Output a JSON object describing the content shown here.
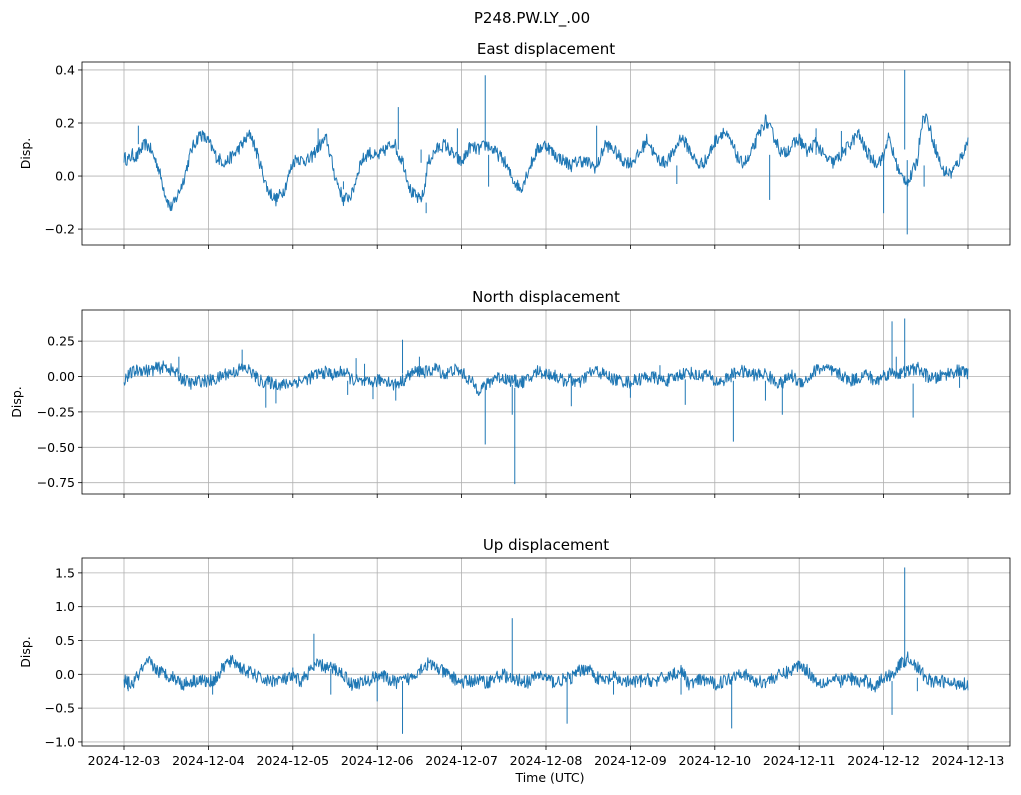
{
  "figure": {
    "suptitle": "P248.PW.LY_.00",
    "line_color": "#1f77b4"
  },
  "chart_data": [
    {
      "type": "line",
      "title": "East displacement",
      "xlabel": "",
      "ylabel": "Disp.",
      "x_range": [
        "2024-12-03T00:00",
        "2024-12-13T00:00"
      ],
      "ylim": [
        -0.26,
        0.43
      ],
      "yticks": [
        -0.2,
        0.0,
        0.2,
        0.4
      ],
      "ytick_labels": [
        "−0.2",
        "0.0",
        "0.2",
        "0.4"
      ],
      "grid": true,
      "series": [
        {
          "x_days": [
            0,
            0.05,
            0.1,
            0.15,
            0.2,
            0.25,
            0.3,
            0.4,
            0.5,
            0.55,
            0.6,
            0.7,
            0.8,
            0.9,
            1.0,
            1.1,
            1.2,
            1.3,
            1.4,
            1.5,
            1.6,
            1.7,
            1.8,
            1.9,
            2.0,
            2.05,
            2.1,
            2.2,
            2.3,
            2.4,
            2.5,
            2.6,
            2.7,
            2.8,
            2.9,
            3.0,
            3.1,
            3.2,
            3.25,
            3.3,
            3.4,
            3.5,
            3.55,
            3.6,
            3.7,
            3.8,
            3.9,
            4.0,
            4.1,
            4.2,
            4.3,
            4.4,
            4.5,
            4.6,
            4.7,
            4.8,
            4.9,
            5.0,
            5.1,
            5.2,
            5.3,
            5.4,
            5.5,
            5.6,
            5.7,
            5.8,
            5.9,
            6.0,
            6.1,
            6.2,
            6.3,
            6.4,
            6.5,
            6.6,
            6.7,
            6.8,
            6.9,
            7.0,
            7.1,
            7.2,
            7.3,
            7.4,
            7.5,
            7.6,
            7.7,
            7.8,
            7.9,
            8.0,
            8.1,
            8.2,
            8.3,
            8.4,
            8.5,
            8.6,
            8.7,
            8.8,
            8.9,
            9.0,
            9.05,
            9.1,
            9.15,
            9.2,
            9.3,
            9.4,
            9.45,
            9.5,
            9.6,
            9.7,
            9.8,
            9.9,
            10.0
          ],
          "values": [
            0.07,
            0.06,
            0.08,
            0.07,
            0.1,
            0.12,
            0.11,
            0.04,
            -0.08,
            -0.12,
            -0.1,
            -0.02,
            0.1,
            0.16,
            0.13,
            0.07,
            0.05,
            0.08,
            0.12,
            0.16,
            0.06,
            -0.05,
            -0.09,
            -0.05,
            0.05,
            0.07,
            0.06,
            0.06,
            0.11,
            0.14,
            0.0,
            -0.09,
            -0.07,
            0.05,
            0.09,
            0.07,
            0.1,
            0.13,
            0.08,
            0.06,
            -0.06,
            -0.09,
            -0.07,
            0.05,
            0.1,
            0.12,
            0.08,
            0.05,
            0.11,
            0.1,
            0.12,
            0.09,
            0.06,
            -0.01,
            -0.05,
            0.03,
            0.1,
            0.12,
            0.08,
            0.06,
            0.04,
            0.06,
            0.05,
            0.03,
            0.12,
            0.1,
            0.06,
            0.05,
            0.08,
            0.14,
            0.07,
            0.05,
            0.08,
            0.15,
            0.1,
            0.04,
            0.06,
            0.13,
            0.17,
            0.12,
            0.05,
            0.06,
            0.14,
            0.21,
            0.15,
            0.08,
            0.11,
            0.14,
            0.09,
            0.13,
            0.07,
            0.05,
            0.08,
            0.12,
            0.16,
            0.09,
            0.05,
            0.07,
            0.15,
            0.1,
            0.05,
            0.0,
            -0.02,
            0.06,
            0.2,
            0.23,
            0.12,
            0.02,
            0.01,
            0.06,
            0.13
          ]
        }
      ],
      "spikes": [
        {
          "x_days": 0.17,
          "from": 0.12,
          "to": 0.19
        },
        {
          "x_days": 2.3,
          "from": 0.09,
          "to": 0.18
        },
        {
          "x_days": 3.25,
          "from": 0.1,
          "to": 0.26
        },
        {
          "x_days": 2.6,
          "from": -0.05,
          "to": -0.02
        },
        {
          "x_days": 3.58,
          "from": -0.1,
          "to": -0.14
        },
        {
          "x_days": 3.95,
          "from": 0.05,
          "to": 0.18
        },
        {
          "x_days": 3.52,
          "from": 0.05,
          "to": 0.1
        },
        {
          "x_days": 4.28,
          "from": 0.12,
          "to": 0.38
        },
        {
          "x_days": 4.32,
          "from": 0.08,
          "to": -0.04
        },
        {
          "x_days": 5.6,
          "from": 0.04,
          "to": 0.19
        },
        {
          "x_days": 6.55,
          "from": 0.04,
          "to": -0.03
        },
        {
          "x_days": 7.65,
          "from": 0.08,
          "to": -0.09
        },
        {
          "x_days": 8.2,
          "from": 0.08,
          "to": 0.18
        },
        {
          "x_days": 8.5,
          "from": 0.07,
          "to": 0.17
        },
        {
          "x_days": 9.0,
          "from": 0.08,
          "to": -0.14
        },
        {
          "x_days": 9.25,
          "from": 0.1,
          "to": 0.4
        },
        {
          "x_days": 9.28,
          "from": 0.06,
          "to": -0.22
        },
        {
          "x_days": 9.48,
          "from": 0.04,
          "to": -0.04
        }
      ]
    },
    {
      "type": "line",
      "title": "North displacement",
      "xlabel": "",
      "ylabel": "Disp.",
      "x_range": [
        "2024-12-03T00:00",
        "2024-12-13T00:00"
      ],
      "ylim": [
        -0.83,
        0.47
      ],
      "yticks": [
        -0.75,
        -0.5,
        -0.25,
        0.0,
        0.25
      ],
      "ytick_labels": [
        "−0.75",
        "−0.50",
        "−0.25",
        "0.00",
        "0.25"
      ],
      "grid": true,
      "series": [
        {
          "x_days": [
            0,
            0.1,
            0.2,
            0.3,
            0.4,
            0.5,
            0.6,
            0.7,
            0.8,
            0.9,
            1.0,
            1.1,
            1.2,
            1.3,
            1.4,
            1.5,
            1.6,
            1.7,
            1.8,
            1.9,
            2.0,
            2.1,
            2.2,
            2.3,
            2.4,
            2.5,
            2.6,
            2.7,
            2.8,
            2.9,
            3.0,
            3.1,
            3.2,
            3.3,
            3.4,
            3.5,
            3.6,
            3.7,
            3.8,
            3.9,
            4.0,
            4.1,
            4.2,
            4.3,
            4.4,
            4.5,
            4.6,
            4.7,
            4.8,
            4.9,
            5.0,
            5.1,
            5.2,
            5.3,
            5.4,
            5.5,
            5.6,
            5.7,
            5.8,
            5.9,
            6.0,
            6.1,
            6.2,
            6.3,
            6.4,
            6.5,
            6.6,
            6.7,
            6.8,
            6.9,
            7.0,
            7.1,
            7.2,
            7.3,
            7.4,
            7.5,
            7.6,
            7.7,
            7.8,
            7.9,
            8.0,
            8.1,
            8.2,
            8.3,
            8.4,
            8.5,
            8.6,
            8.7,
            8.8,
            8.9,
            9.0,
            9.1,
            9.2,
            9.3,
            9.4,
            9.5,
            9.6,
            9.7,
            9.8,
            9.9,
            10.0
          ],
          "values": [
            -0.02,
            0.03,
            0.05,
            0.04,
            0.06,
            0.07,
            0.03,
            -0.02,
            -0.05,
            -0.03,
            -0.03,
            -0.02,
            0.02,
            0.03,
            0.06,
            0.04,
            -0.03,
            -0.04,
            -0.05,
            -0.06,
            -0.04,
            -0.03,
            -0.01,
            0.02,
            0.03,
            0.01,
            0.04,
            -0.02,
            -0.04,
            -0.05,
            -0.03,
            -0.02,
            -0.06,
            -0.03,
            0.02,
            0.04,
            0.03,
            0.06,
            0.01,
            0.05,
            0.03,
            -0.03,
            -0.09,
            -0.06,
            0.0,
            -0.01,
            -0.03,
            -0.04,
            -0.02,
            0.04,
            0.02,
            0.01,
            -0.03,
            -0.02,
            -0.05,
            0.02,
            0.04,
            0.01,
            -0.02,
            -0.03,
            -0.04,
            -0.02,
            0.0,
            -0.01,
            -0.03,
            -0.02,
            0.02,
            0.03,
            0.0,
            0.02,
            -0.04,
            -0.03,
            0.01,
            0.04,
            0.02,
            0.01,
            0.02,
            -0.03,
            -0.05,
            0.01,
            -0.04,
            -0.02,
            0.05,
            0.06,
            0.03,
            0.01,
            -0.03,
            -0.01,
            0.02,
            -0.04,
            0.01,
            0.03,
            0.02,
            0.04,
            0.06,
            0.01,
            -0.02,
            0.01,
            0.03,
            0.04,
            0.02
          ]
        }
      ],
      "spikes": [
        {
          "x_days": 0.65,
          "from": 0.02,
          "to": 0.14
        },
        {
          "x_days": 1.4,
          "from": 0.05,
          "to": 0.19
        },
        {
          "x_days": 1.68,
          "from": -0.04,
          "to": -0.22
        },
        {
          "x_days": 1.8,
          "from": -0.05,
          "to": -0.19
        },
        {
          "x_days": 2.65,
          "from": -0.03,
          "to": -0.13
        },
        {
          "x_days": 2.75,
          "from": -0.02,
          "to": 0.13
        },
        {
          "x_days": 2.85,
          "from": -0.03,
          "to": 0.09
        },
        {
          "x_days": 2.95,
          "from": -0.04,
          "to": -0.16
        },
        {
          "x_days": 3.22,
          "from": -0.04,
          "to": -0.17
        },
        {
          "x_days": 3.3,
          "from": 0.02,
          "to": 0.26
        },
        {
          "x_days": 3.5,
          "from": 0.03,
          "to": 0.14
        },
        {
          "x_days": 4.28,
          "from": -0.05,
          "to": -0.48
        },
        {
          "x_days": 4.6,
          "from": -0.06,
          "to": -0.27
        },
        {
          "x_days": 4.63,
          "from": -0.08,
          "to": -0.76
        },
        {
          "x_days": 5.3,
          "from": -0.03,
          "to": -0.21
        },
        {
          "x_days": 6.0,
          "from": -0.03,
          "to": -0.15
        },
        {
          "x_days": 6.35,
          "from": -0.02,
          "to": 0.08
        },
        {
          "x_days": 6.65,
          "from": -0.02,
          "to": -0.2
        },
        {
          "x_days": 7.22,
          "from": -0.03,
          "to": -0.46
        },
        {
          "x_days": 7.6,
          "from": -0.03,
          "to": -0.17
        },
        {
          "x_days": 7.8,
          "from": -0.02,
          "to": -0.27
        },
        {
          "x_days": 9.1,
          "from": 0.02,
          "to": 0.39
        },
        {
          "x_days": 9.15,
          "from": 0.0,
          "to": 0.14
        },
        {
          "x_days": 9.25,
          "from": 0.04,
          "to": 0.41
        },
        {
          "x_days": 9.35,
          "from": -0.05,
          "to": -0.29
        },
        {
          "x_days": 9.9,
          "from": 0.0,
          "to": -0.08
        }
      ]
    },
    {
      "type": "line",
      "title": "Up displacement",
      "xlabel": "Time (UTC)",
      "ylabel": "Disp.",
      "x_range": [
        "2024-12-03T00:00",
        "2024-12-13T00:00"
      ],
      "xticks": [
        "2024-12-03",
        "2024-12-04",
        "2024-12-05",
        "2024-12-06",
        "2024-12-07",
        "2024-12-08",
        "2024-12-09",
        "2024-12-10",
        "2024-12-11",
        "2024-12-12",
        "2024-12-13"
      ],
      "ylim": [
        -1.06,
        1.72
      ],
      "yticks": [
        -1.0,
        -0.5,
        0.0,
        0.5,
        1.0,
        1.5
      ],
      "ytick_labels": [
        "−1.0",
        "−0.5",
        "0.0",
        "0.5",
        "1.0",
        "1.5"
      ],
      "grid": true,
      "series": [
        {
          "x_days": [
            0,
            0.1,
            0.2,
            0.3,
            0.4,
            0.5,
            0.6,
            0.7,
            0.8,
            0.9,
            1.0,
            1.1,
            1.2,
            1.3,
            1.4,
            1.5,
            1.6,
            1.7,
            1.8,
            1.9,
            2.0,
            2.1,
            2.2,
            2.3,
            2.4,
            2.5,
            2.6,
            2.7,
            2.8,
            2.9,
            3.0,
            3.1,
            3.2,
            3.3,
            3.4,
            3.5,
            3.6,
            3.7,
            3.8,
            3.9,
            4.0,
            4.1,
            4.2,
            4.3,
            4.4,
            4.5,
            4.6,
            4.7,
            4.8,
            4.9,
            5.0,
            5.1,
            5.2,
            5.3,
            5.4,
            5.5,
            5.6,
            5.7,
            5.8,
            5.9,
            6.0,
            6.1,
            6.2,
            6.3,
            6.4,
            6.5,
            6.6,
            6.7,
            6.8,
            6.9,
            7.0,
            7.1,
            7.2,
            7.3,
            7.4,
            7.5,
            7.6,
            7.7,
            7.8,
            7.9,
            8.0,
            8.1,
            8.2,
            8.3,
            8.4,
            8.5,
            8.6,
            8.7,
            8.8,
            8.9,
            9.0,
            9.1,
            9.2,
            9.3,
            9.4,
            9.5,
            9.6,
            9.7,
            9.8,
            9.9,
            10.0
          ],
          "values": [
            -0.1,
            -0.15,
            0.05,
            0.18,
            0.05,
            0.0,
            -0.05,
            -0.15,
            -0.1,
            -0.08,
            -0.12,
            -0.05,
            0.15,
            0.2,
            0.08,
            0.02,
            -0.05,
            -0.1,
            -0.08,
            -0.08,
            -0.05,
            -0.1,
            0.05,
            0.15,
            0.1,
            0.08,
            0.0,
            -0.15,
            -0.12,
            -0.1,
            0.0,
            -0.05,
            -0.12,
            -0.1,
            -0.05,
            0.08,
            0.15,
            0.1,
            0.02,
            -0.05,
            -0.12,
            -0.1,
            -0.08,
            -0.12,
            -0.05,
            0.0,
            -0.1,
            -0.08,
            -0.12,
            0.0,
            -0.05,
            -0.12,
            -0.08,
            -0.05,
            0.05,
            0.1,
            -0.05,
            -0.1,
            -0.05,
            -0.1,
            -0.12,
            -0.1,
            -0.08,
            -0.1,
            -0.05,
            0.0,
            0.05,
            -0.15,
            -0.1,
            -0.08,
            -0.15,
            -0.1,
            -0.05,
            0.05,
            -0.05,
            -0.12,
            -0.1,
            -0.05,
            0.0,
            0.05,
            0.15,
            0.05,
            -0.1,
            -0.12,
            -0.08,
            -0.1,
            -0.05,
            -0.12,
            -0.1,
            -0.18,
            -0.05,
            0.0,
            0.15,
            0.25,
            0.1,
            -0.05,
            -0.12,
            -0.1,
            -0.15,
            -0.12,
            -0.15
          ]
        }
      ],
      "spikes": [
        {
          "x_days": 0.05,
          "from": -0.05,
          "to": -0.25
        },
        {
          "x_days": 1.05,
          "from": -0.1,
          "to": -0.3
        },
        {
          "x_days": 2.0,
          "from": -0.05,
          "to": 0.1
        },
        {
          "x_days": 2.25,
          "from": 0.05,
          "to": 0.6
        },
        {
          "x_days": 2.45,
          "from": 0.08,
          "to": -0.3
        },
        {
          "x_days": 3.0,
          "from": 0.0,
          "to": -0.4
        },
        {
          "x_days": 3.3,
          "from": -0.1,
          "to": -0.88
        },
        {
          "x_days": 3.6,
          "from": 0.1,
          "to": 0.25
        },
        {
          "x_days": 4.6,
          "from": -0.08,
          "to": 0.83
        },
        {
          "x_days": 5.25,
          "from": -0.05,
          "to": -0.73
        },
        {
          "x_days": 5.8,
          "from": -0.1,
          "to": -0.3
        },
        {
          "x_days": 6.6,
          "from": -0.05,
          "to": -0.3
        },
        {
          "x_days": 7.2,
          "from": -0.1,
          "to": -0.8
        },
        {
          "x_days": 9.1,
          "from": -0.1,
          "to": -0.6
        },
        {
          "x_days": 9.25,
          "from": 0.1,
          "to": 1.58
        },
        {
          "x_days": 9.4,
          "from": -0.05,
          "to": -0.25
        }
      ]
    }
  ]
}
